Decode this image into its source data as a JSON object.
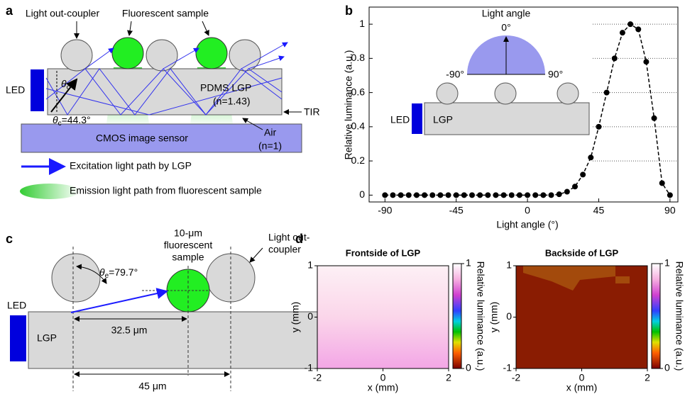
{
  "panel_a": {
    "label": "a",
    "outcoupler": "Light out-coupler",
    "sample": "Fluorescent sample",
    "led": "LED",
    "theta": "θ",
    "theta_sub": "c",
    "theta_value": "=44.3°",
    "lgp": "PDMS LGP",
    "lgp_index": "(n=1.43)",
    "tir": "TIR",
    "air": "Air",
    "air_index": "(n=1)",
    "sensor": "CMOS image sensor",
    "legend_excitation": "Excitation light path by LGP",
    "legend_emission": "Emission light path from fluorescent sample"
  },
  "chart_data": {
    "type": "line",
    "label": "b",
    "xlabel": "Light angle (°)",
    "ylabel": "Relative luminance (a.u.)",
    "color": "#000000",
    "grid": true,
    "x": [
      -90,
      -85,
      -80,
      -75,
      -70,
      -65,
      -60,
      -55,
      -50,
      -45,
      -40,
      -35,
      -30,
      -25,
      -20,
      -15,
      -10,
      -5,
      0,
      5,
      10,
      15,
      20,
      25,
      30,
      35,
      40,
      45,
      50,
      55,
      60,
      65,
      70,
      75,
      80,
      85,
      90
    ],
    "values": [
      0,
      0,
      0,
      0,
      0,
      0,
      0,
      0,
      0,
      0,
      0,
      0,
      0,
      0,
      0,
      0,
      0,
      0,
      0,
      0,
      0,
      0,
      0.005,
      0.02,
      0.05,
      0.12,
      0.22,
      0.4,
      0.6,
      0.8,
      0.95,
      1.0,
      0.97,
      0.78,
      0.45,
      0.07,
      0
    ],
    "xlim": [
      -100,
      95
    ],
    "xticks": [
      -90,
      -45,
      0,
      45,
      90
    ],
    "ylim": [
      -0.04,
      1.1
    ],
    "yticks": [
      0,
      0.2,
      0.4,
      0.6,
      0.8,
      1
    ],
    "inset": {
      "title": "Light angle",
      "top": "0°",
      "left": "-90°",
      "right": "90°",
      "led": "LED",
      "lgp": "LGP"
    }
  },
  "panel_c": {
    "label": "c",
    "sample_1": "10-μm",
    "sample_2": "fluorescent",
    "sample_3": "sample",
    "outcoupler_1": "Light out-",
    "outcoupler_2": "coupler",
    "led": "LED",
    "lgp": "LGP",
    "theta": "θ",
    "theta_sub": "e",
    "theta_value": "=79.7°",
    "dist_1": "32.5 μm",
    "dist_2": "45 μm"
  },
  "panel_d": {
    "label": "d",
    "maps": [
      {
        "title": "Frontside of LGP",
        "xlabel": "x (mm)",
        "ylabel": "y (mm)",
        "xlim": [
          -2,
          2
        ],
        "ylim": [
          -1,
          1
        ],
        "xticks": [
          -2,
          0,
          2
        ],
        "yticks": [
          -1,
          0,
          1
        ],
        "colorbar_label": "Relative luminance (a.u.)",
        "clim": [
          0,
          1
        ],
        "colorbar_ticks": [
          0,
          1
        ]
      },
      {
        "title": "Backside of LGP",
        "xlabel": "x (mm)",
        "ylabel": "y (mm)",
        "xlim": [
          -2,
          2
        ],
        "ylim": [
          -1,
          1
        ],
        "xticks": [
          -2,
          0,
          2
        ],
        "yticks": [
          -1,
          0,
          1
        ],
        "colorbar_label": "Relative luminance (a.u.)",
        "clim": [
          0,
          1
        ],
        "colorbar_ticks": [
          0,
          1
        ]
      }
    ]
  }
}
